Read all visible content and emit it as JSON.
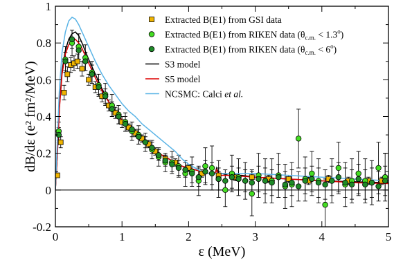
{
  "chart_data": {
    "type": "scatter",
    "xlabel": "ε (MeV)",
    "ylabel": "dB/dε (e² fm²/MeV)",
    "xlim": [
      0,
      5
    ],
    "ylim": [
      -0.2,
      1.0
    ],
    "x_ticks": [
      "0",
      "1",
      "2",
      "3",
      "4",
      "5"
    ],
    "y_ticks": [
      "-0.2",
      "0",
      "0.2",
      "0.4",
      "0.6",
      "0.8",
      "1"
    ],
    "grid": false,
    "legend_position": "top-right",
    "reference_line_y": 0,
    "colors": {
      "gsi": "#f0b400",
      "riken_13": "#44dd22",
      "riken_6": "#1e8a28",
      "s3": "#000000",
      "s5": "#dd0000",
      "ncsmc": "#5ab4e6"
    },
    "series": [
      {
        "name": "Extracted B(E1) from GSI data",
        "kind": "points",
        "marker": "square",
        "color_key": "gsi",
        "x": [
          0.03,
          0.08,
          0.13,
          0.18,
          0.23,
          0.28,
          0.33,
          0.4,
          0.5,
          0.6,
          0.7,
          0.8,
          0.9,
          1.0,
          1.1,
          1.2,
          1.3,
          1.4,
          1.5,
          1.65,
          1.8,
          2.0,
          2.2,
          2.45,
          2.7,
          2.95,
          3.2,
          3.5,
          3.8,
          4.1,
          4.4,
          4.7,
          4.9
        ],
        "y": [
          0.08,
          0.26,
          0.53,
          0.63,
          0.68,
          0.69,
          0.7,
          0.66,
          0.6,
          0.56,
          0.51,
          0.46,
          0.42,
          0.37,
          0.34,
          0.31,
          0.28,
          0.25,
          0.21,
          0.17,
          0.15,
          0.12,
          0.09,
          0.08,
          0.07,
          0.07,
          0.06,
          0.06,
          0.05,
          0.06,
          0.05,
          0.05,
          0.05
        ],
        "err": [
          0.01,
          0.03,
          0.04,
          0.04,
          0.04,
          0.04,
          0.04,
          0.04,
          0.03,
          0.03,
          0.03,
          0.03,
          0.03,
          0.03,
          0.02,
          0.02,
          0.02,
          0.02,
          0.02,
          0.02,
          0.02,
          0.02,
          0.02,
          0.02,
          0.02,
          0.02,
          0.02,
          0.02,
          0.02,
          0.02,
          0.02,
          0.02,
          0.02
        ]
      },
      {
        "name": "Extracted B(E1) from RIKEN data (θc.m. < 1.3°)",
        "kind": "points",
        "marker": "circle",
        "color_key": "riken_13",
        "x": [
          0.05,
          0.15,
          0.25,
          0.35,
          0.45,
          0.55,
          0.65,
          0.75,
          0.85,
          0.95,
          1.05,
          1.15,
          1.25,
          1.35,
          1.45,
          1.55,
          1.65,
          1.75,
          1.85,
          1.95,
          2.05,
          2.15,
          2.25,
          2.35,
          2.45,
          2.55,
          2.65,
          2.75,
          2.85,
          2.95,
          3.05,
          3.15,
          3.25,
          3.35,
          3.45,
          3.55,
          3.65,
          3.75,
          3.85,
          3.95,
          4.05,
          4.15,
          4.25,
          4.35,
          4.45,
          4.55,
          4.65,
          4.75,
          4.85,
          4.95
        ],
        "y": [
          0.32,
          0.71,
          0.8,
          0.78,
          0.72,
          0.64,
          0.57,
          0.52,
          0.46,
          0.41,
          0.37,
          0.32,
          0.3,
          0.26,
          0.22,
          0.18,
          0.15,
          0.15,
          0.13,
          0.09,
          0.1,
          0.05,
          0.13,
          0.12,
          0.06,
          0.0,
          0.09,
          0.07,
          0.05,
          -0.02,
          0.08,
          0.05,
          0.05,
          0.08,
          0.02,
          0.03,
          0.28,
          0.06,
          0.09,
          0.05,
          -0.08,
          0.05,
          0.12,
          0.03,
          0.05,
          0.09,
          0.05,
          0.04,
          0.12,
          0.07
        ],
        "err": [
          0.05,
          0.07,
          0.07,
          0.07,
          0.07,
          0.06,
          0.06,
          0.06,
          0.06,
          0.05,
          0.05,
          0.05,
          0.05,
          0.05,
          0.05,
          0.05,
          0.05,
          0.06,
          0.06,
          0.07,
          0.08,
          0.08,
          0.1,
          0.12,
          0.1,
          0.09,
          0.1,
          0.1,
          0.1,
          0.12,
          0.12,
          0.12,
          0.12,
          0.12,
          0.12,
          0.12,
          0.16,
          0.12,
          0.12,
          0.12,
          0.14,
          0.12,
          0.14,
          0.12,
          0.12,
          0.12,
          0.12,
          0.12,
          0.14,
          0.13
        ]
      },
      {
        "name": "Extracted B(E1) from RIKEN data (θc.m. < 6°)",
        "kind": "points",
        "marker": "circle",
        "color_key": "riken_6",
        "x": [
          0.05,
          0.15,
          0.25,
          0.35,
          0.45,
          0.55,
          0.65,
          0.75,
          0.85,
          0.95,
          1.05,
          1.15,
          1.25,
          1.35,
          1.45,
          1.55,
          1.65,
          1.75,
          1.85,
          1.95,
          2.05,
          2.15,
          2.25,
          2.35,
          2.45,
          2.55,
          2.65,
          2.75,
          2.85,
          2.95,
          3.05,
          3.15,
          3.25,
          3.35,
          3.45,
          3.55,
          3.65,
          3.75,
          3.85,
          3.95,
          4.05,
          4.15,
          4.25,
          4.35,
          4.45,
          4.55,
          4.65,
          4.75,
          4.85,
          4.95
        ],
        "y": [
          0.3,
          0.7,
          0.82,
          0.76,
          0.7,
          0.63,
          0.56,
          0.51,
          0.44,
          0.4,
          0.36,
          0.33,
          0.29,
          0.26,
          0.23,
          0.19,
          0.16,
          0.14,
          0.12,
          0.11,
          0.09,
          0.07,
          0.1,
          0.09,
          0.06,
          0.05,
          0.07,
          0.06,
          0.05,
          0.04,
          0.06,
          0.05,
          0.04,
          0.07,
          0.03,
          0.04,
          0.02,
          0.05,
          0.06,
          0.04,
          0.03,
          0.05,
          0.07,
          0.04,
          0.03,
          0.06,
          0.03,
          0.04,
          0.02,
          0.05
        ],
        "err": [
          0.04,
          0.05,
          0.05,
          0.05,
          0.05,
          0.05,
          0.04,
          0.04,
          0.04,
          0.04,
          0.04,
          0.04,
          0.04,
          0.03,
          0.03,
          0.03,
          0.03,
          0.04,
          0.04,
          0.04,
          0.05,
          0.05,
          0.06,
          0.06,
          0.06,
          0.06,
          0.06,
          0.06,
          0.06,
          0.07,
          0.07,
          0.07,
          0.07,
          0.07,
          0.07,
          0.07,
          0.08,
          0.07,
          0.07,
          0.08,
          0.08,
          0.08,
          0.08,
          0.08,
          0.08,
          0.08,
          0.08,
          0.08,
          0.08,
          0.08
        ]
      },
      {
        "name": "S3 model",
        "kind": "line",
        "color_key": "s3",
        "x": [
          0.0,
          0.03,
          0.06,
          0.1,
          0.15,
          0.2,
          0.25,
          0.3,
          0.35,
          0.4,
          0.5,
          0.6,
          0.7,
          0.8,
          0.9,
          1.0,
          1.1,
          1.2,
          1.3,
          1.4,
          1.5,
          1.6,
          1.7,
          1.8,
          1.9,
          2.0,
          2.1,
          2.2,
          2.3,
          2.4,
          2.42,
          2.45,
          2.5,
          2.6,
          2.8,
          3.0,
          3.5,
          4.0,
          4.5,
          5.0
        ],
        "y": [
          0.0,
          0.2,
          0.45,
          0.65,
          0.76,
          0.82,
          0.85,
          0.86,
          0.84,
          0.8,
          0.71,
          0.63,
          0.55,
          0.48,
          0.43,
          0.38,
          0.34,
          0.3,
          0.27,
          0.24,
          0.21,
          0.19,
          0.17,
          0.15,
          0.13,
          0.12,
          0.11,
          0.1,
          0.09,
          0.09,
          0.12,
          0.09,
          0.09,
          0.08,
          0.08,
          0.07,
          0.06,
          0.05,
          0.045,
          0.04
        ]
      },
      {
        "name": "S5 model",
        "kind": "line",
        "color_key": "s5",
        "x": [
          0.0,
          0.03,
          0.06,
          0.1,
          0.15,
          0.2,
          0.25,
          0.3,
          0.35,
          0.4,
          0.5,
          0.6,
          0.7,
          0.8,
          0.9,
          1.0,
          1.1,
          1.2,
          1.3,
          1.4,
          1.5,
          1.6,
          1.7,
          1.8,
          1.9,
          2.0,
          2.1,
          2.2,
          2.3,
          2.4,
          2.42,
          2.45,
          2.5,
          2.6,
          2.8,
          3.0,
          3.5,
          4.0,
          4.5,
          5.0
        ],
        "y": [
          0.0,
          0.2,
          0.44,
          0.63,
          0.74,
          0.79,
          0.81,
          0.82,
          0.8,
          0.77,
          0.69,
          0.61,
          0.54,
          0.48,
          0.43,
          0.38,
          0.34,
          0.3,
          0.27,
          0.24,
          0.21,
          0.19,
          0.17,
          0.15,
          0.13,
          0.12,
          0.11,
          0.1,
          0.09,
          0.09,
          0.11,
          0.085,
          0.08,
          0.08,
          0.075,
          0.07,
          0.06,
          0.05,
          0.04,
          0.035
        ]
      },
      {
        "name": "NCSMC: Calci et al.",
        "kind": "line",
        "color_key": "ncsmc",
        "x": [
          0.0,
          0.03,
          0.06,
          0.1,
          0.15,
          0.2,
          0.25,
          0.3,
          0.35,
          0.4,
          0.5,
          0.6,
          0.7,
          0.8,
          0.9,
          1.0,
          1.1,
          1.2,
          1.3,
          1.4,
          1.5,
          1.6,
          1.7,
          1.8,
          1.9,
          2.0,
          2.1,
          2.2,
          2.3,
          2.4,
          2.6,
          2.8,
          3.0,
          3.5,
          4.0,
          4.5,
          5.0
        ],
        "y": [
          0.0,
          0.28,
          0.55,
          0.75,
          0.86,
          0.92,
          0.94,
          0.93,
          0.9,
          0.86,
          0.78,
          0.7,
          0.63,
          0.57,
          0.52,
          0.47,
          0.43,
          0.4,
          0.36,
          0.33,
          0.3,
          0.27,
          0.24,
          0.21,
          0.17,
          0.14,
          0.12,
          0.1,
          0.09,
          0.09,
          0.09,
          0.09,
          0.09,
          0.08,
          0.07,
          0.06,
          0.05
        ]
      }
    ]
  },
  "legend": {
    "items": [
      {
        "label": "Extracted B(E1) from GSI data",
        "sub": ""
      },
      {
        "label": "Extracted B(E1) from RIKEN data (θ",
        "sub": "c.m.",
        "tail": " < 1.3",
        "sup": "o",
        "end": ")"
      },
      {
        "label": "Extracted B(E1) from RIKEN data (θ",
        "sub": "c.m.",
        "tail": " < 6",
        "sup": "o",
        "end": ")"
      },
      {
        "label": "S3 model"
      },
      {
        "label": "S5 model"
      },
      {
        "label": "NCSMC: Calci ",
        "italic": "et al."
      }
    ]
  }
}
